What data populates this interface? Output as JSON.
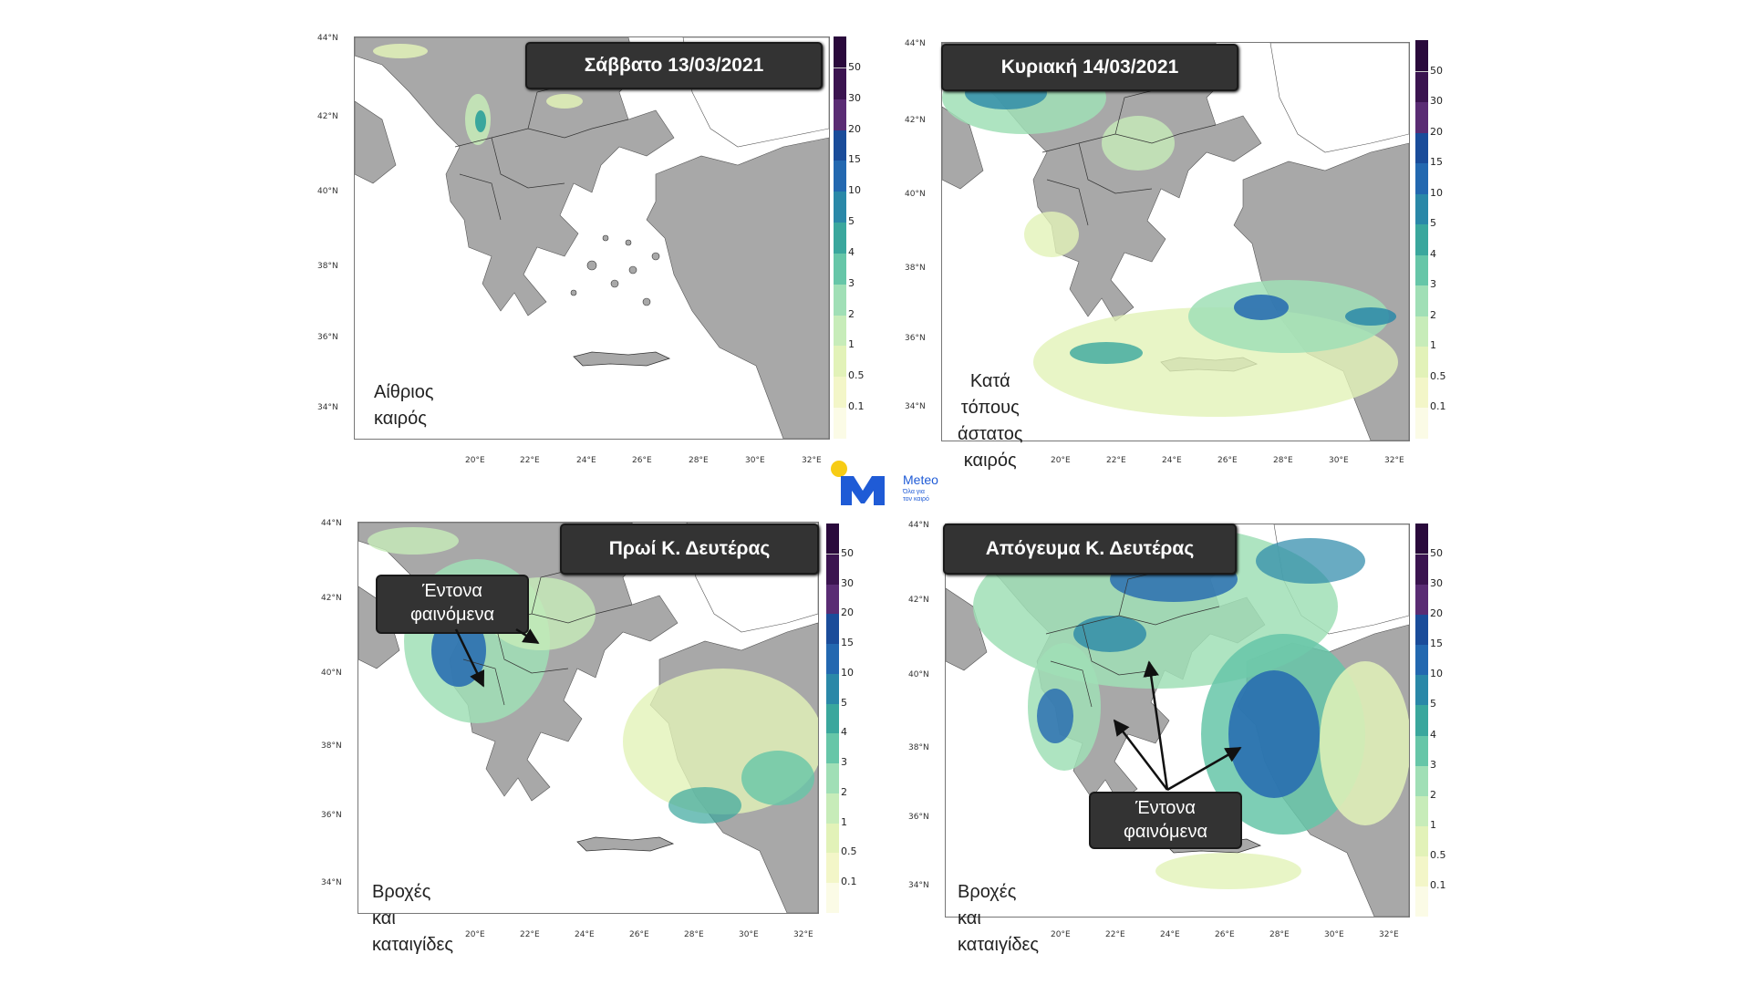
{
  "colors": {
    "land": "#a8a8a8",
    "sea": "#ffffff",
    "border": "#333333",
    "box_bg": "#333333",
    "brand_blue": "#1f5bd6",
    "brand_yellow": "#f7cc15"
  },
  "legend": {
    "levels": [
      "0.1",
      "0.5",
      "1",
      "2",
      "3",
      "4",
      "5",
      "10",
      "15",
      "20",
      "30",
      "50"
    ],
    "colors": [
      "#fbfbe6",
      "#f3f6c8",
      "#e2f2b8",
      "#c7ecb9",
      "#a0dfb6",
      "#66c6a8",
      "#3aa79d",
      "#2a88a8",
      "#2368b0",
      "#1a4c9a",
      "#5a2c74",
      "#3b1450"
    ]
  },
  "axes": {
    "lat_ticks": [
      "44°N",
      "42°N",
      "40°N",
      "38°N",
      "36°N",
      "34°N"
    ],
    "lon_ticks": [
      "20°E",
      "22°E",
      "24°E",
      "26°E",
      "28°E",
      "30°E",
      "32°E"
    ]
  },
  "panels": [
    {
      "title": "Σάββατο 13/03/2021",
      "note_lines": [
        "Αίθριος καιρός"
      ]
    },
    {
      "title": "Κυριακή 14/03/2021",
      "note_lines": [
        "Κατά τόπους",
        "άστατος καιρός"
      ]
    },
    {
      "title": "Πρωί Κ. Δευτέρας",
      "note_lines": [
        "Βροχές και καταιγίδες"
      ],
      "callout": [
        "Έντονα",
        "φαινόμενα"
      ]
    },
    {
      "title": "Απόγευμα Κ. Δευτέρας",
      "note_lines": [
        "Βροχές και καταιγίδες"
      ],
      "callout": [
        "Έντονα",
        "φαινόμενα"
      ]
    }
  ],
  "logo": {
    "name": "Meteo",
    "tagline_1": "Όλα για",
    "tagline_2": "τον καιρό"
  }
}
